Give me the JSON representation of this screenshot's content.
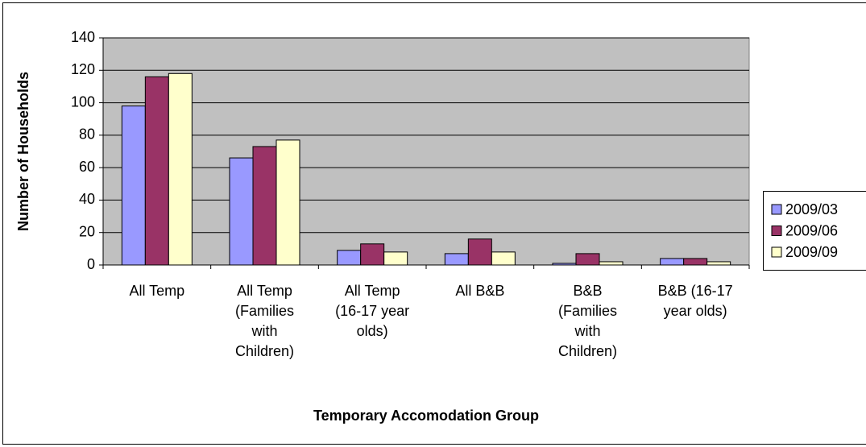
{
  "chart_data": {
    "type": "bar",
    "xlabel": "Temporary Accomodation Group",
    "ylabel": "Number of Households",
    "categories": [
      "All Temp",
      "All Temp (Families with Children)",
      "All Temp (16-17 year olds)",
      "All B&B",
      "B&B (Families with Children)",
      "B&B (16-17 year olds)"
    ],
    "series": [
      {
        "name": "2009/03",
        "color": "#9999ff",
        "values": [
          98,
          66,
          9,
          7,
          1,
          4
        ]
      },
      {
        "name": "2009/06",
        "color": "#993366",
        "values": [
          116,
          73,
          13,
          16,
          7,
          4
        ]
      },
      {
        "name": "2009/09",
        "color": "#ffffcc",
        "values": [
          118,
          77,
          8,
          8,
          2,
          2
        ]
      }
    ],
    "ylim": [
      0,
      140
    ],
    "yticks": [
      0,
      20,
      40,
      60,
      80,
      100,
      120,
      140
    ],
    "grid": true,
    "legend": "right"
  }
}
